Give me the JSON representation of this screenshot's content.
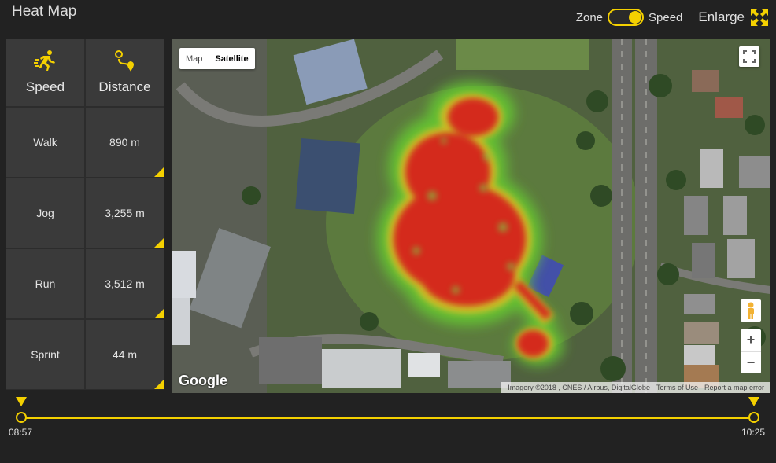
{
  "header": {
    "title": "Heat Map",
    "zone_label": "Zone",
    "speed_label": "Speed",
    "enlarge_label": "Enlarge"
  },
  "panel": {
    "speed_header": "Speed",
    "distance_header": "Distance",
    "rows": [
      {
        "speed": "Walk",
        "distance": "890 m"
      },
      {
        "speed": "Jog",
        "distance": "3,255 m"
      },
      {
        "speed": "Run",
        "distance": "3,512 m"
      },
      {
        "speed": "Sprint",
        "distance": "44 m"
      }
    ]
  },
  "map": {
    "map_tab": "Map",
    "satellite_tab": "Satellite",
    "zoom_in": "+",
    "zoom_out": "−",
    "google_logo": "Google",
    "imagery": "Imagery ©2018 , CNES / Airbus, DigitalGlobe",
    "terms": "Terms of Use",
    "report": "Report a map error"
  },
  "timeline": {
    "start": "08:57",
    "end": "10:25"
  },
  "colors": {
    "accent": "#f4d000",
    "panel_bg": "#3a3a3a",
    "heat_high": "#d42b1c",
    "heat_low": "#6cd34a"
  },
  "icons": {
    "speed": "running-person-icon",
    "distance": "route-pin-icon",
    "enlarge": "expand-arrows-icon",
    "fullscreen": "fullscreen-icon",
    "street_view": "pegman-icon"
  }
}
